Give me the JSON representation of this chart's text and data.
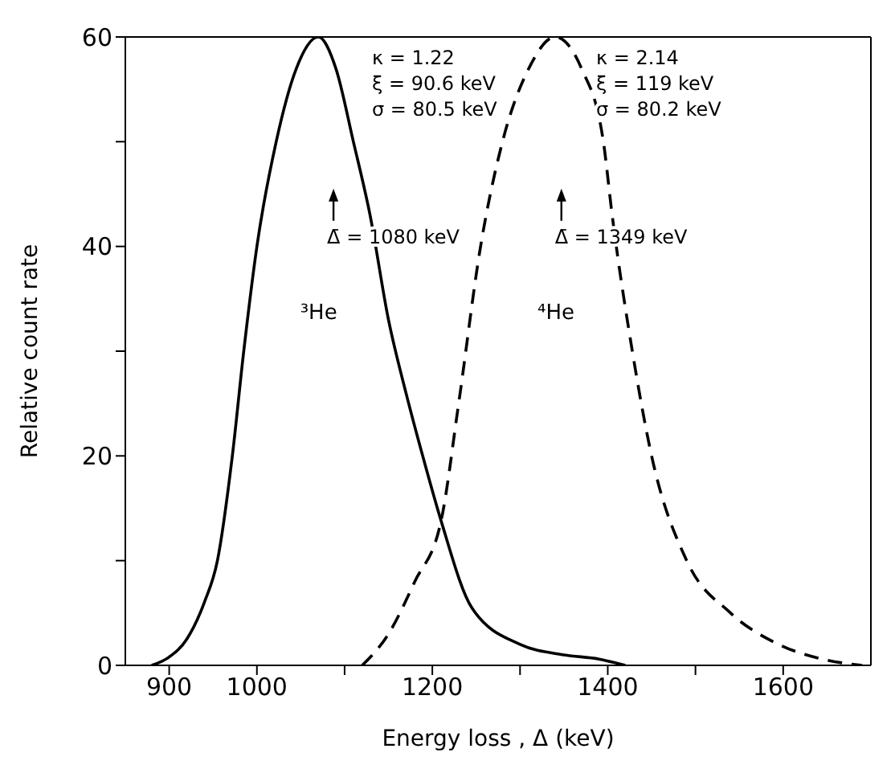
{
  "chart_data": {
    "type": "line",
    "xlabel": "Energy loss , Δ  (keV)",
    "ylabel": "Relative count rate",
    "xlim": [
      850,
      1700
    ],
    "xticks": [
      900,
      1000,
      {
        "value": 1100,
        "label": null
      },
      1200,
      {
        "value": 1300,
        "label": null
      },
      1400,
      {
        "value": 1500,
        "label": null
      },
      1600
    ],
    "ylim": [
      0,
      60
    ],
    "yticks": [
      0,
      {
        "value": 10,
        "label": null
      },
      20,
      {
        "value": 30,
        "label": null
      },
      40,
      {
        "value": 50,
        "label": null
      },
      60
    ],
    "grid": false,
    "marker": "none",
    "series": [
      {
        "name": "³He",
        "color": "#000000",
        "line_style": "solid",
        "x": [
          880,
          900,
          920,
          940,
          955,
          972,
          985,
          1000,
          1022,
          1045,
          1070,
          1090,
          1110,
          1129,
          1150,
          1170,
          1189,
          1210,
          1245,
          1300,
          1350,
          1390,
          1420
        ],
        "values": [
          0,
          0.8,
          2.5,
          6,
          10,
          20,
          30,
          40,
          50,
          57,
          60,
          57,
          50,
          43,
          33,
          26,
          20,
          13.8,
          5.5,
          2,
          1,
          0.6,
          0
        ]
      },
      {
        "name": "⁴He",
        "color": "#000000",
        "line_style": "dashed",
        "x": [
          1120,
          1150,
          1180,
          1210,
          1230,
          1255,
          1280,
          1310,
          1340,
          1370,
          1395,
          1405,
          1428,
          1450,
          1490,
          1540,
          1595,
          1650,
          1690
        ],
        "values": [
          0,
          3,
          8,
          13.8,
          25,
          40,
          50,
          57,
          60,
          57,
          50,
          43,
          30,
          20,
          10,
          5,
          2,
          0.5,
          0
        ]
      }
    ],
    "annotations": [
      "κ = 1.22",
      "ξ = 90.6 keV",
      "σ = 80.5 keV",
      "κ = 2.14",
      "ξ = 119 keV",
      "σ = 80.2 keV",
      "Δ̄ = 1080 keV",
      "Δ̄ = 1349 keV"
    ]
  }
}
